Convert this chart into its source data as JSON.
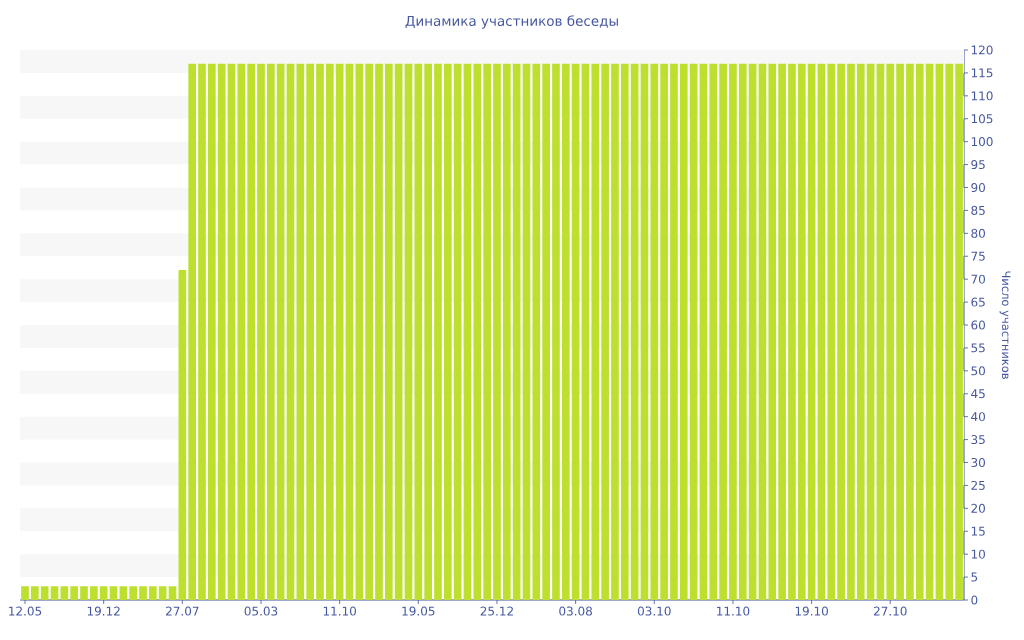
{
  "chart_data": {
    "type": "bar",
    "title": "Динамика участников беседы",
    "ylabel": "Число участников",
    "categories": [
      "12.05",
      null,
      null,
      null,
      null,
      null,
      null,
      null,
      "19.12",
      null,
      null,
      null,
      null,
      null,
      null,
      null,
      "27.07",
      null,
      null,
      null,
      null,
      null,
      null,
      null,
      "05.03",
      null,
      null,
      null,
      null,
      null,
      null,
      null,
      "11.10",
      null,
      null,
      null,
      null,
      null,
      null,
      null,
      "19.05",
      null,
      null,
      null,
      null,
      null,
      null,
      null,
      "25.12",
      null,
      null,
      null,
      null,
      null,
      null,
      null,
      "03.08",
      null,
      null,
      null,
      null,
      null,
      null,
      null,
      "03.10",
      null,
      null,
      null,
      null,
      null,
      null,
      null,
      "11.10",
      null,
      null,
      null,
      null,
      null,
      null,
      null,
      "19.10",
      null,
      null,
      null,
      null,
      null,
      null,
      null,
      "27.10",
      null,
      null,
      null,
      null,
      null,
      null,
      null
    ],
    "values": [
      3,
      3,
      3,
      3,
      3,
      3,
      3,
      3,
      3,
      3,
      3,
      3,
      3,
      3,
      3,
      3,
      72,
      117,
      117,
      117,
      117,
      117,
      117,
      117,
      117,
      117,
      117,
      117,
      117,
      117,
      117,
      117,
      117,
      117,
      117,
      117,
      117,
      117,
      117,
      117,
      117,
      117,
      117,
      117,
      117,
      117,
      117,
      117,
      117,
      117,
      117,
      117,
      117,
      117,
      117,
      117,
      117,
      117,
      117,
      117,
      117,
      117,
      117,
      117,
      117,
      117,
      117,
      117,
      117,
      117,
      117,
      117,
      117,
      117,
      117,
      117,
      117,
      117,
      117,
      117,
      117,
      117,
      117,
      117,
      117,
      117,
      117,
      117,
      117,
      117,
      117,
      117,
      117,
      117,
      117,
      117
    ],
    "color": "#bde02f",
    "ylim": [
      0,
      120
    ],
    "yticks": [
      0,
      5,
      10,
      15,
      20,
      25,
      30,
      35,
      40,
      45,
      50,
      55,
      60,
      65,
      70,
      75,
      80,
      85,
      90,
      95,
      100,
      105,
      110,
      115,
      120
    ],
    "bands": [
      {
        "axis": "y",
        "from": 115,
        "to": 120,
        "color": "#f7f7f7"
      },
      {
        "axis": "y",
        "from": 105,
        "to": 110,
        "color": "#f7f7f7"
      },
      {
        "axis": "y",
        "from": 95,
        "to": 100,
        "color": "#f7f7f7"
      },
      {
        "axis": "y",
        "from": 85,
        "to": 90,
        "color": "#f7f7f7"
      },
      {
        "axis": "y",
        "from": 75,
        "to": 80,
        "color": "#f7f7f7"
      },
      {
        "axis": "y",
        "from": 65,
        "to": 70,
        "color": "#f7f7f7"
      },
      {
        "axis": "y",
        "from": 55,
        "to": 60,
        "color": "#f7f7f7"
      },
      {
        "axis": "y",
        "from": 45,
        "to": 50,
        "color": "#f7f7f7"
      },
      {
        "axis": "y",
        "from": 35,
        "to": 40,
        "color": "#f7f7f7"
      },
      {
        "axis": "y",
        "from": 25,
        "to": 30,
        "color": "#f7f7f7"
      },
      {
        "axis": "y",
        "from": 15,
        "to": 20,
        "color": "#f7f7f7"
      },
      {
        "axis": "y",
        "from": 5,
        "to": 10,
        "color": "#f7f7f7"
      }
    ]
  }
}
